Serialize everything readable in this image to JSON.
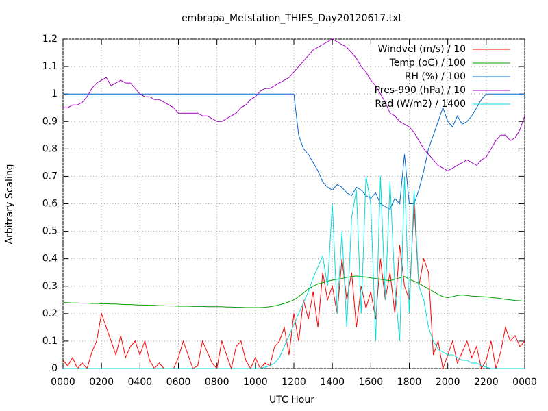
{
  "chart_data": {
    "type": "line",
    "title": "embrapa_Metstation_THIES_Day20120617.txt",
    "xlabel": "UTC Hour",
    "ylabel": "Arbitrary Scaling",
    "xlim": [
      0,
      24
    ],
    "ylim": [
      0,
      1.2
    ],
    "xticks": [
      {
        "value": 0,
        "label": "0000"
      },
      {
        "value": 2,
        "label": "0200"
      },
      {
        "value": 4,
        "label": "0400"
      },
      {
        "value": 6,
        "label": "0600"
      },
      {
        "value": 8,
        "label": "0800"
      },
      {
        "value": 10,
        "label": "1000"
      },
      {
        "value": 12,
        "label": "1200"
      },
      {
        "value": 14,
        "label": "1400"
      },
      {
        "value": 16,
        "label": "1600"
      },
      {
        "value": 18,
        "label": "1800"
      },
      {
        "value": 20,
        "label": "2000"
      },
      {
        "value": 22,
        "label": "2200"
      },
      {
        "value": 24,
        "label": "0000"
      }
    ],
    "yticks": [
      0,
      0.1,
      0.2,
      0.3,
      0.4,
      0.5,
      0.6,
      0.7,
      0.8,
      0.9,
      1,
      1.1,
      1.2
    ],
    "grid": true,
    "legend": "top-right",
    "x": [
      0,
      0.25,
      0.5,
      0.75,
      1,
      1.25,
      1.5,
      1.75,
      2,
      2.25,
      2.5,
      2.75,
      3,
      3.25,
      3.5,
      3.75,
      4,
      4.25,
      4.5,
      4.75,
      5,
      5.25,
      5.5,
      5.75,
      6,
      6.25,
      6.5,
      6.75,
      7,
      7.25,
      7.5,
      7.75,
      8,
      8.25,
      8.5,
      8.75,
      9,
      9.25,
      9.5,
      9.75,
      10,
      10.25,
      10.5,
      10.75,
      11,
      11.25,
      11.5,
      11.75,
      12,
      12.25,
      12.5,
      12.75,
      13,
      13.25,
      13.5,
      13.75,
      14,
      14.25,
      14.5,
      14.75,
      15,
      15.25,
      15.5,
      15.75,
      16,
      16.25,
      16.5,
      16.75,
      17,
      17.25,
      17.5,
      17.75,
      18,
      18.25,
      18.5,
      18.75,
      19,
      19.25,
      19.5,
      19.75,
      20,
      20.25,
      20.5,
      20.75,
      21,
      21.25,
      21.5,
      21.75,
      22,
      22.25,
      22.5,
      22.75,
      23,
      23.25,
      23.5,
      23.75,
      24
    ],
    "series": [
      {
        "name": "Windvel (m/s) / 10",
        "color": "#ff0000",
        "values": [
          0.03,
          0.01,
          0.04,
          0,
          0.02,
          0,
          0.06,
          0.1,
          0.2,
          0.15,
          0.1,
          0.05,
          0.12,
          0.04,
          0.08,
          0.1,
          0.05,
          0.1,
          0.03,
          0,
          0.02,
          0,
          0,
          0,
          0.04,
          0.1,
          0.05,
          0,
          0.01,
          0.1,
          0.06,
          0.02,
          0,
          0.1,
          0.05,
          0,
          0.08,
          0.1,
          0.03,
          0,
          0.04,
          0,
          0.02,
          0.01,
          0.08,
          0.1,
          0.15,
          0.05,
          0.2,
          0.1,
          0.25,
          0.18,
          0.28,
          0.15,
          0.35,
          0.25,
          0.3,
          0.2,
          0.4,
          0.25,
          0.35,
          0.15,
          0.3,
          0.22,
          0.28,
          0.18,
          0.4,
          0.25,
          0.35,
          0.2,
          0.45,
          0.3,
          0.25,
          0.6,
          0.3,
          0.4,
          0.35,
          0.05,
          0.1,
          0,
          0.05,
          0.1,
          0.02,
          0.06,
          0.1,
          0.04,
          0.08,
          0,
          0.03,
          0.1,
          0,
          0.06,
          0.15,
          0.1,
          0.12,
          0.08,
          0.1
        ]
      },
      {
        "name": "Temp (oC) / 100",
        "color": "#00a000",
        "values": [
          0.24,
          0.24,
          0.239,
          0.239,
          0.238,
          0.238,
          0.237,
          0.237,
          0.236,
          0.236,
          0.235,
          0.235,
          0.234,
          0.233,
          0.233,
          0.232,
          0.231,
          0.231,
          0.23,
          0.23,
          0.229,
          0.229,
          0.228,
          0.228,
          0.227,
          0.227,
          0.227,
          0.226,
          0.226,
          0.226,
          0.225,
          0.225,
          0.225,
          0.225,
          0.224,
          0.224,
          0.223,
          0.223,
          0.222,
          0.222,
          0.222,
          0.222,
          0.223,
          0.225,
          0.228,
          0.232,
          0.237,
          0.243,
          0.25,
          0.262,
          0.275,
          0.29,
          0.3,
          0.308,
          0.312,
          0.318,
          0.322,
          0.325,
          0.328,
          0.332,
          0.335,
          0.337,
          0.335,
          0.333,
          0.33,
          0.328,
          0.325,
          0.322,
          0.32,
          0.325,
          0.33,
          0.335,
          0.325,
          0.318,
          0.31,
          0.3,
          0.29,
          0.28,
          0.27,
          0.262,
          0.258,
          0.262,
          0.266,
          0.268,
          0.266,
          0.264,
          0.263,
          0.262,
          0.261,
          0.259,
          0.257,
          0.255,
          0.252,
          0.25,
          0.248,
          0.247,
          0.245
        ]
      },
      {
        "name": "RH (%) / 100",
        "color": "#0066cc",
        "values": [
          1,
          1,
          1,
          1,
          1,
          1,
          1,
          1,
          1,
          1,
          1,
          1,
          1,
          1,
          1,
          1,
          1,
          1,
          1,
          1,
          1,
          1,
          1,
          1,
          1,
          1,
          1,
          1,
          1,
          1,
          1,
          1,
          1,
          1,
          1,
          1,
          1,
          1,
          1,
          1,
          1,
          1,
          1,
          1,
          1,
          1,
          1,
          1,
          1,
          0.85,
          0.8,
          0.78,
          0.75,
          0.72,
          0.68,
          0.66,
          0.65,
          0.67,
          0.66,
          0.64,
          0.63,
          0.66,
          0.65,
          0.63,
          0.62,
          0.64,
          0.6,
          0.59,
          0.58,
          0.62,
          0.6,
          0.78,
          0.6,
          0.6,
          0.65,
          0.72,
          0.8,
          0.85,
          0.9,
          0.95,
          0.9,
          0.88,
          0.92,
          0.89,
          0.9,
          0.92,
          0.95,
          0.98,
          1,
          1,
          1,
          1,
          1,
          1,
          1,
          1,
          1
        ]
      },
      {
        "name": "Pres-990 (hPa) / 10",
        "color": "#a000c0",
        "values": [
          0.95,
          0.95,
          0.96,
          0.96,
          0.97,
          0.99,
          1.02,
          1.04,
          1.05,
          1.06,
          1.03,
          1.04,
          1.05,
          1.04,
          1.04,
          1.02,
          1,
          0.99,
          0.99,
          0.98,
          0.98,
          0.97,
          0.96,
          0.95,
          0.93,
          0.93,
          0.93,
          0.93,
          0.93,
          0.92,
          0.92,
          0.91,
          0.9,
          0.9,
          0.91,
          0.92,
          0.93,
          0.95,
          0.96,
          0.98,
          0.99,
          1.01,
          1.02,
          1.02,
          1.03,
          1.04,
          1.05,
          1.06,
          1.08,
          1.1,
          1.12,
          1.14,
          1.16,
          1.17,
          1.18,
          1.19,
          1.2,
          1.19,
          1.18,
          1.17,
          1.15,
          1.13,
          1.1,
          1.08,
          1.05,
          1.03,
          1,
          0.97,
          0.93,
          0.92,
          0.9,
          0.89,
          0.88,
          0.86,
          0.83,
          0.8,
          0.78,
          0.76,
          0.74,
          0.73,
          0.72,
          0.73,
          0.74,
          0.75,
          0.76,
          0.75,
          0.74,
          0.76,
          0.77,
          0.8,
          0.83,
          0.85,
          0.85,
          0.83,
          0.84,
          0.87,
          0.92
        ]
      },
      {
        "name": "Rad (W/m2) / 1400",
        "color": "#00dddd",
        "values": [
          0,
          0,
          0,
          0,
          0,
          0,
          0,
          0,
          0,
          0,
          0,
          0,
          0,
          0,
          0,
          0,
          0,
          0,
          0,
          0,
          0,
          0,
          0,
          0,
          0,
          0,
          0,
          0,
          0,
          0,
          0,
          0,
          0,
          0,
          0,
          0,
          0,
          0,
          0,
          0,
          0,
          0,
          0.005,
          0.01,
          0.02,
          0.04,
          0.08,
          0.12,
          0.16,
          0.2,
          0.24,
          0.28,
          0.33,
          0.37,
          0.41,
          0.3,
          0.6,
          0.2,
          0.5,
          0.15,
          0.55,
          0.65,
          0.2,
          0.7,
          0.6,
          0.1,
          0.7,
          0.25,
          0.68,
          0.3,
          0.1,
          0.7,
          0.2,
          0.65,
          0.3,
          0.25,
          0.15,
          0.1,
          0.07,
          0.06,
          0.05,
          0.05,
          0.04,
          0.03,
          0.03,
          0.02,
          0.02,
          0.01,
          0.005,
          0,
          0,
          0,
          0,
          0,
          0,
          0,
          0
        ]
      }
    ]
  }
}
